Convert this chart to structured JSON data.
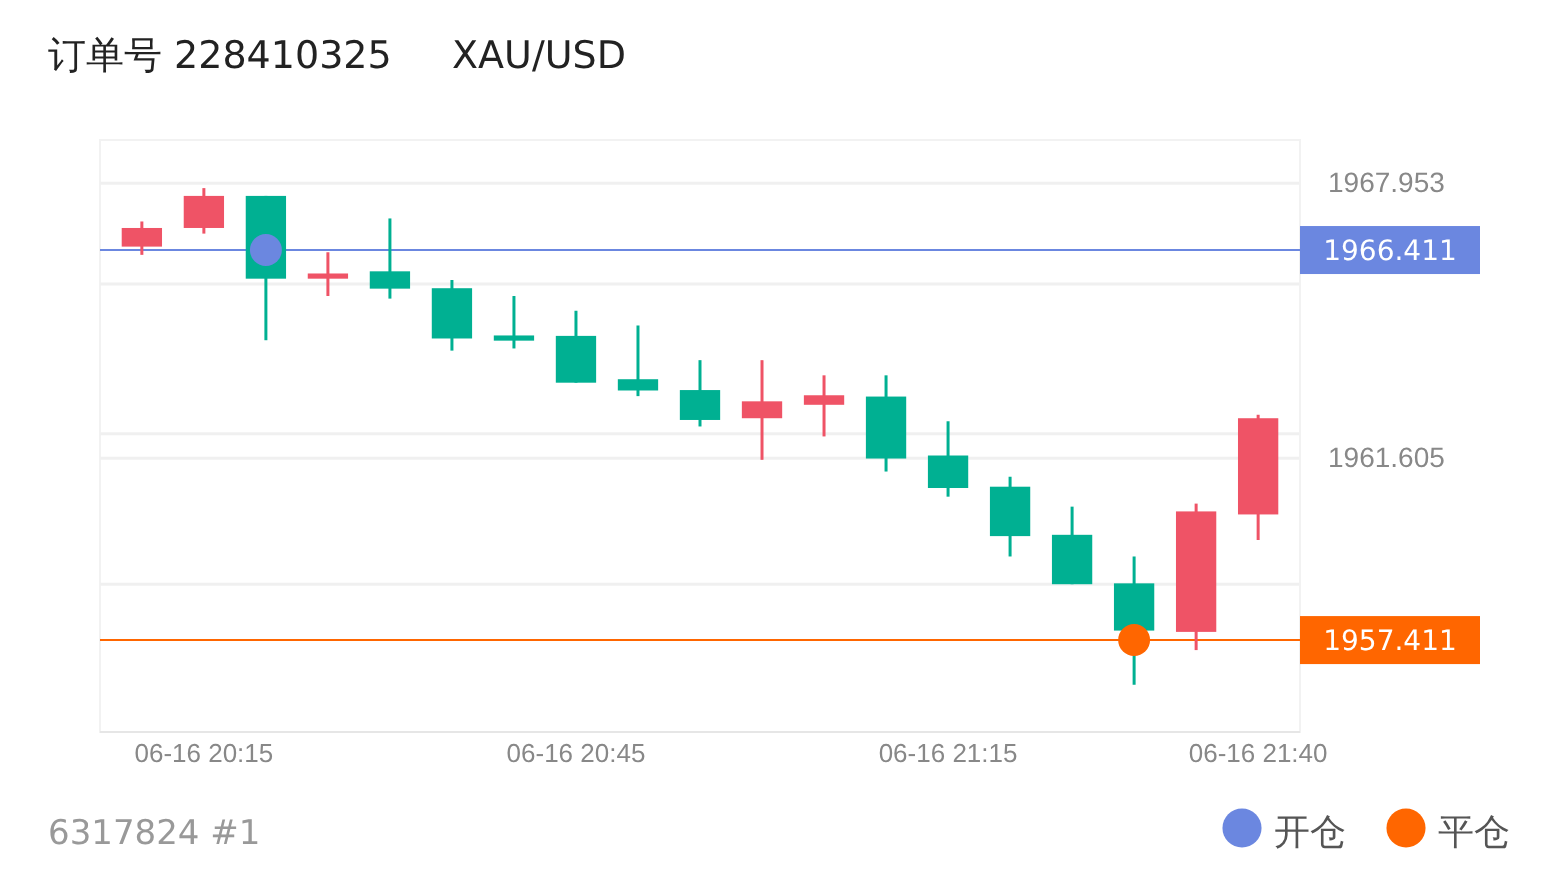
{
  "chart_data": {
    "type": "candlestick",
    "title": "订单号 228410325     XAU/USD",
    "categories": [
      null,
      "06-16 20:15",
      null,
      null,
      null,
      null,
      null,
      "06-16 20:45",
      null,
      null,
      null,
      null,
      null,
      "06-16 21:15",
      null,
      null,
      null,
      null,
      "06-16 21:40"
    ],
    "ohlc": [
      [
        1966.49,
        1967.07,
        1966.3,
        1966.92
      ],
      [
        1966.92,
        1967.84,
        1966.79,
        1967.66
      ],
      [
        1967.66,
        1967.66,
        1964.33,
        1965.75
      ],
      [
        1965.75,
        1966.36,
        1965.35,
        1965.87
      ],
      [
        1965.92,
        1967.14,
        1965.29,
        1965.52
      ],
      [
        1965.53,
        1965.72,
        1964.09,
        1964.37
      ],
      [
        1964.44,
        1965.35,
        1964.14,
        1964.32
      ],
      [
        1964.43,
        1965.01,
        1963.35,
        1963.35
      ],
      [
        1963.43,
        1964.67,
        1963.04,
        1963.17
      ],
      [
        1963.18,
        1963.87,
        1962.34,
        1962.49
      ],
      [
        1962.53,
        1963.87,
        1961.57,
        1962.92
      ],
      [
        1962.84,
        1963.52,
        1962.11,
        1963.06
      ],
      [
        1963.03,
        1963.52,
        1961.3,
        1961.6
      ],
      [
        1961.67,
        1962.46,
        1960.72,
        1960.92
      ],
      [
        1960.95,
        1961.18,
        1959.34,
        1959.81
      ],
      [
        1959.84,
        1960.49,
        1958.7,
        1958.7
      ],
      [
        1958.72,
        1959.34,
        1956.38,
        1957.63
      ],
      [
        1957.6,
        1960.56,
        1957.18,
        1960.38
      ],
      [
        1960.31,
        1962.61,
        1959.72,
        1962.53
      ]
    ],
    "colors": [
      "#ef5366",
      "#ef5366",
      "#00b092",
      "#ef5366",
      "#00b092",
      "#00b092",
      "#00b092",
      "#00b092",
      "#00b092",
      "#00b092",
      "#ef5366",
      "#ef5366",
      "#00b092",
      "#00b092",
      "#00b092",
      "#00b092",
      "#00b092",
      "#ef5366",
      "#ef5366"
    ],
    "series": [
      {
        "name": "开仓",
        "type": "scatter",
        "color": "#6b87e0",
        "values": [
          null,
          null,
          1966.411,
          null,
          null,
          null,
          null,
          null,
          null,
          null,
          null,
          null,
          null,
          null,
          null,
          null,
          null,
          null,
          null
        ]
      },
      {
        "name": "平仓",
        "type": "scatter",
        "color": "#ff6600",
        "values": [
          null,
          null,
          null,
          null,
          null,
          null,
          null,
          null,
          null,
          null,
          null,
          null,
          null,
          null,
          null,
          null,
          1957.411,
          null,
          null
        ]
      }
    ],
    "marker": "circle",
    "ylim": [
      1955.29,
      1968.95
    ],
    "yticks": [
      1967.953,
      {
        "value": 1965.63,
        "label": null
      },
      {
        "value": 1962.17,
        "label": null
      },
      1961.605,
      {
        "value": 1958.7,
        "label": null
      }
    ],
    "ref_lines": [
      {
        "axis": "y",
        "value": 1966.411,
        "label": "1966.411",
        "color": "#6b87e0"
      },
      {
        "axis": "y",
        "value": 1957.411,
        "label": "1957.411",
        "color": "#ff6600"
      }
    ],
    "grid": "y",
    "legend": "bottom right",
    "annotations": [
      "6317824 #1"
    ]
  }
}
